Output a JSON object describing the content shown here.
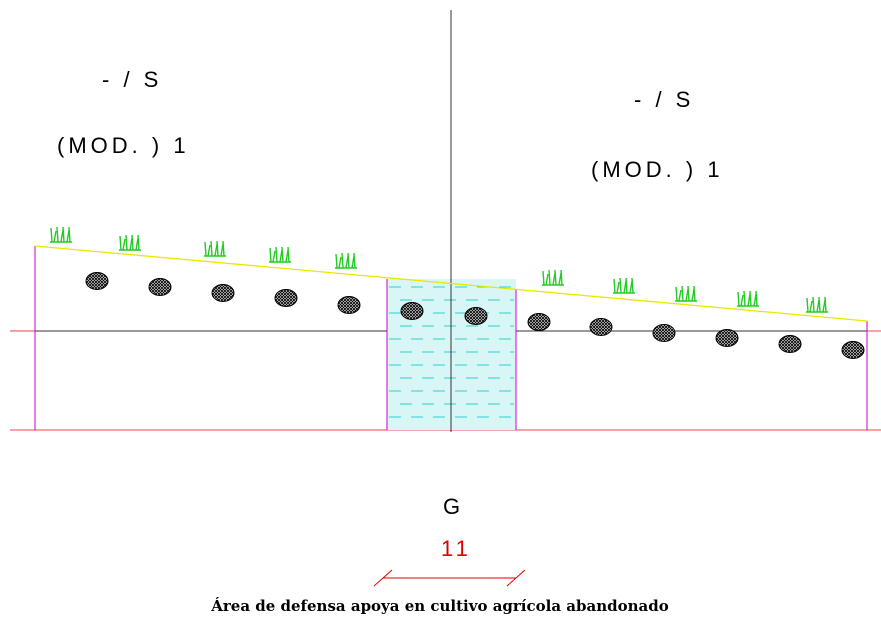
{
  "labels": {
    "left_top": "-  /  S",
    "left_mod": "(MOD.  )     1",
    "right_top": "-  /  S",
    "right_mod": "(MOD.  )     1",
    "center_letter": "G",
    "center_number": "11",
    "caption": "Área de defensa apoya en cultivo agrícola abandonado"
  },
  "colors": {
    "ground_slope": "#e8e800",
    "boundary": "#cc00cc",
    "reference_lines": "#e84a4a",
    "water_fill": "#d8f6f6",
    "water_dash": "#33cccc",
    "grass": "#22cc22",
    "axis": "#333333",
    "number": "#e00000"
  }
}
